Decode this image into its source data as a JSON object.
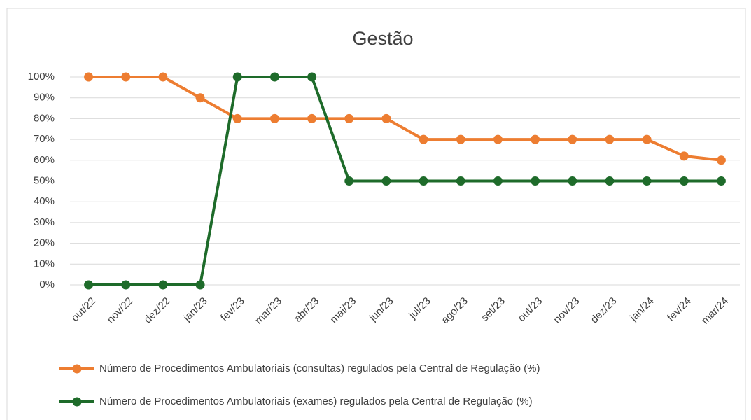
{
  "chart_data": {
    "type": "line",
    "title": "Gestão",
    "categories": [
      "out/22",
      "nov/22",
      "dez/22",
      "jan/23",
      "fev/23",
      "mar/23",
      "abr/23",
      "mai/23",
      "jun/23",
      "jul/23",
      "ago/23",
      "set/23",
      "out/23",
      "nov/23",
      "dez/23",
      "jan/24",
      "fev/24",
      "mar/24"
    ],
    "series": [
      {
        "name": "Número de Procedimentos Ambulatoriais (consultas) regulados pela Central de Regulação (%)",
        "color": "#ed7d31",
        "values": [
          100,
          100,
          100,
          90,
          80,
          80,
          80,
          80,
          80,
          70,
          70,
          70,
          70,
          70,
          70,
          70,
          62,
          60
        ]
      },
      {
        "name": "Número de Procedimentos Ambulatoriais (exames) regulados pela Central de Regulação (%)",
        "color": "#1e6b2a",
        "values": [
          0,
          0,
          0,
          0,
          100,
          100,
          100,
          50,
          50,
          50,
          50,
          50,
          50,
          50,
          50,
          50,
          50,
          50
        ]
      }
    ],
    "ylim": [
      0,
      100
    ],
    "yticks": [
      {
        "value": 0,
        "label": "0%"
      },
      {
        "value": 10,
        "label": "10%"
      },
      {
        "value": 20,
        "label": "20%"
      },
      {
        "value": 30,
        "label": "30%"
      },
      {
        "value": 40,
        "label": "40%"
      },
      {
        "value": 50,
        "label": "50%"
      },
      {
        "value": 60,
        "label": "60%"
      },
      {
        "value": 70,
        "label": "70%"
      },
      {
        "value": 80,
        "label": "80%"
      },
      {
        "value": 90,
        "label": "90%"
      },
      {
        "value": 100,
        "label": "100%"
      }
    ],
    "grid": true
  }
}
